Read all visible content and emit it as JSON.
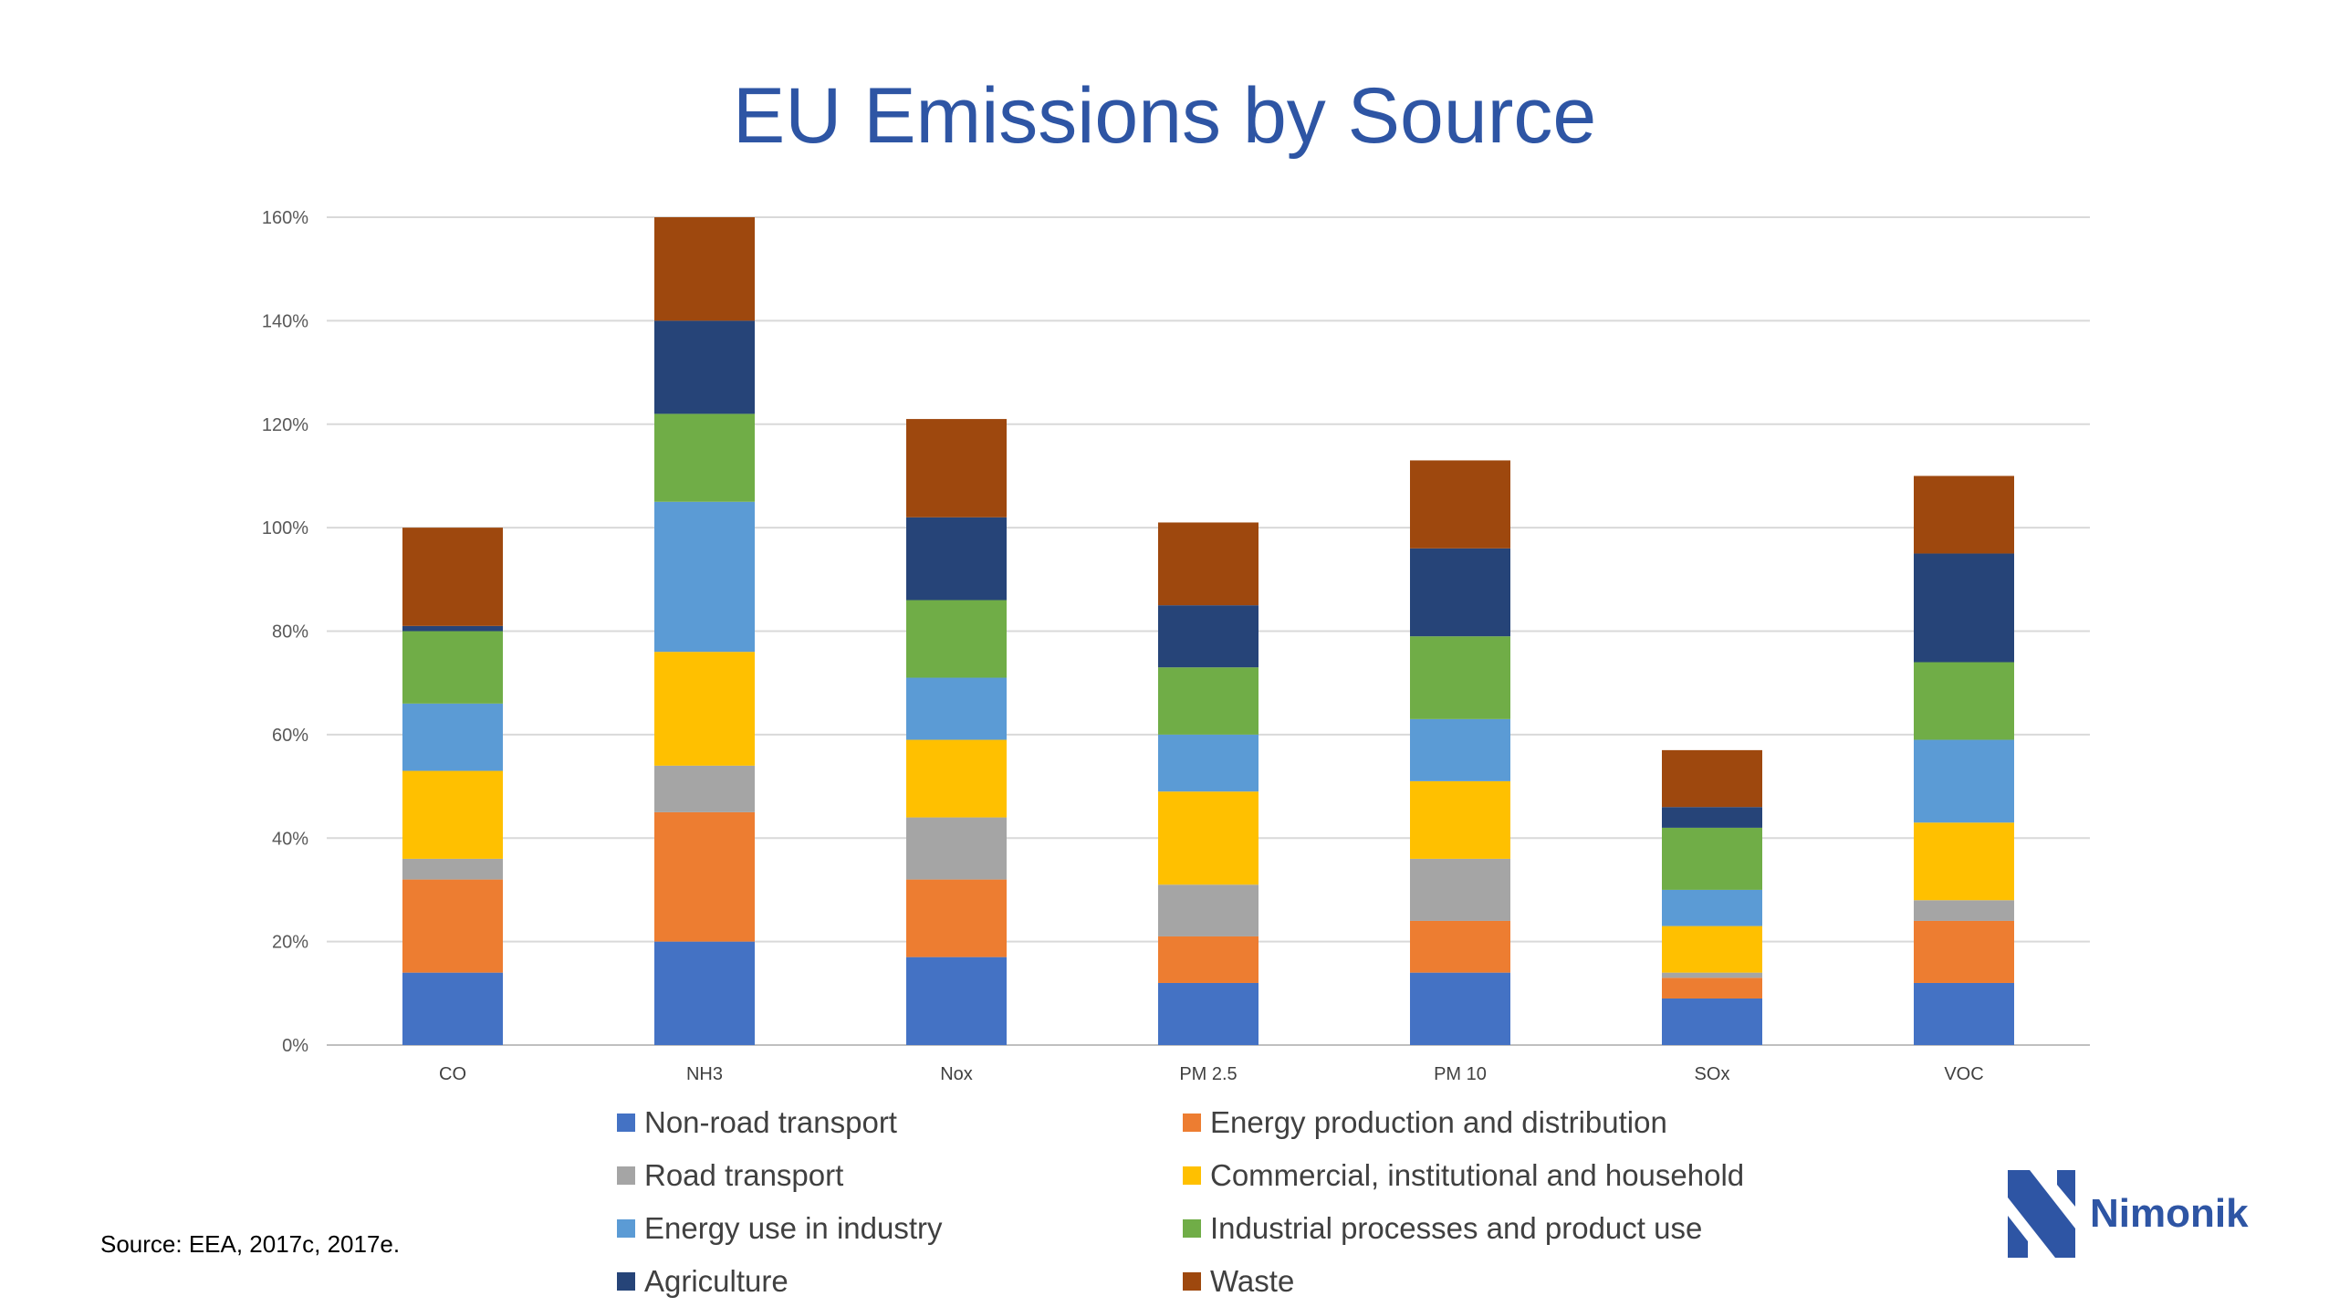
{
  "chart_data": {
    "type": "bar",
    "stacked": true,
    "title": "EU Emissions by Source",
    "categories": [
      "CO",
      "NH3",
      "Nox",
      "PM 2.5",
      "PM 10",
      "SOx",
      "VOC"
    ],
    "ylim": [
      0,
      160
    ],
    "yticks": [
      0,
      20,
      40,
      60,
      80,
      100,
      120,
      140,
      160
    ],
    "ytick_labels": [
      "0%",
      "20%",
      "40%",
      "60%",
      "80%",
      "100%",
      "120%",
      "140%",
      "160%"
    ],
    "grid": true,
    "legend_position": "bottom",
    "series": [
      {
        "name": "Non-road transport",
        "color": "#4472c4",
        "values": [
          14,
          20,
          17,
          12,
          14,
          9,
          12
        ]
      },
      {
        "name": "Energy production and distribution",
        "color": "#ed7d31",
        "values": [
          18,
          25,
          15,
          9,
          10,
          4,
          12
        ]
      },
      {
        "name": "Road transport",
        "color": "#a5a5a5",
        "values": [
          4,
          9,
          12,
          10,
          12,
          1,
          4
        ]
      },
      {
        "name": "Commercial, institutional and household",
        "color": "#ffc000",
        "values": [
          17,
          22,
          15,
          18,
          15,
          9,
          15
        ]
      },
      {
        "name": "Energy use in industry",
        "color": "#5b9bd5",
        "values": [
          13,
          29,
          12,
          11,
          12,
          7,
          16
        ]
      },
      {
        "name": "Industrial processes and product use",
        "color": "#70ad47",
        "values": [
          14,
          17,
          15,
          13,
          16,
          12,
          15
        ]
      },
      {
        "name": "Agriculture",
        "color": "#264478",
        "values": [
          1,
          18,
          16,
          12,
          17,
          4,
          21
        ]
      },
      {
        "name": "Waste",
        "color": "#9e480e",
        "values": [
          19,
          20,
          19,
          16,
          17,
          11,
          15
        ]
      }
    ]
  },
  "source_note": "Source: EEA, 2017c, 2017e.",
  "logo": {
    "text": "Nimonik",
    "color": "#2e55a4"
  }
}
